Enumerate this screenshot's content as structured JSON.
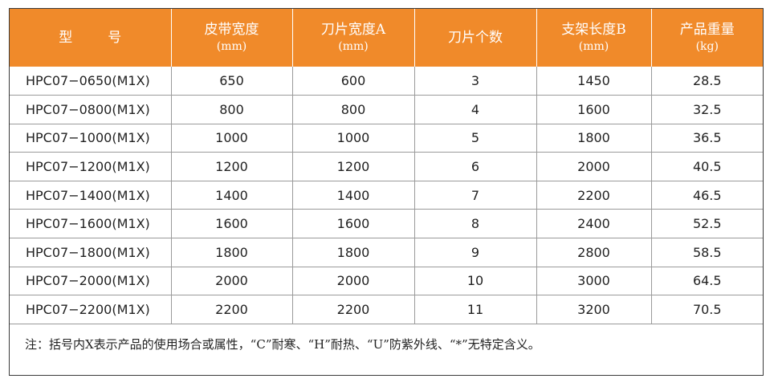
{
  "headers": {
    "model": [
      "型",
      "号"
    ],
    "belt_width": {
      "label": "皮带宽度",
      "unit": "(mm)"
    },
    "blade_width": {
      "label": "刀片宽度A",
      "unit": "(mm)"
    },
    "blade_count": {
      "label": "刀片个数"
    },
    "frame_length": {
      "label": "支架长度B",
      "unit": "(mm)"
    },
    "weight": {
      "label": "产品重量",
      "unit": "(kg)"
    }
  },
  "rows": [
    [
      "HPC07−0650(M1X)",
      "650",
      "600",
      "3",
      "1450",
      "28.5"
    ],
    [
      "HPC07−0800(M1X)",
      "800",
      "800",
      "4",
      "1600",
      "32.5"
    ],
    [
      "HPC07−1000(M1X)",
      "1000",
      "1000",
      "5",
      "1800",
      "36.5"
    ],
    [
      "HPC07−1200(M1X)",
      "1200",
      "1200",
      "6",
      "2000",
      "40.5"
    ],
    [
      "HPC07−1400(M1X)",
      "1400",
      "1400",
      "7",
      "2200",
      "46.5"
    ],
    [
      "HPC07−1600(M1X)",
      "1600",
      "1600",
      "8",
      "2400",
      "52.5"
    ],
    [
      "HPC07−1800(M1X)",
      "1800",
      "1800",
      "9",
      "2800",
      "58.5"
    ],
    [
      "HPC07−2000(M1X)",
      "2000",
      "2000",
      "10",
      "3000",
      "64.5"
    ],
    [
      "HPC07−2200(M1X)",
      "2200",
      "2200",
      "11",
      "3200",
      "70.5"
    ]
  ],
  "note": "注：括号内X表示产品的使用场合或属性，“C”耐寒、“H”耐热、“U”防紫外线、“*”无特定含义。",
  "colors": {
    "header_bg": "#f08a2a",
    "header_text": "#ffffff",
    "border": "#9a9a9a"
  }
}
